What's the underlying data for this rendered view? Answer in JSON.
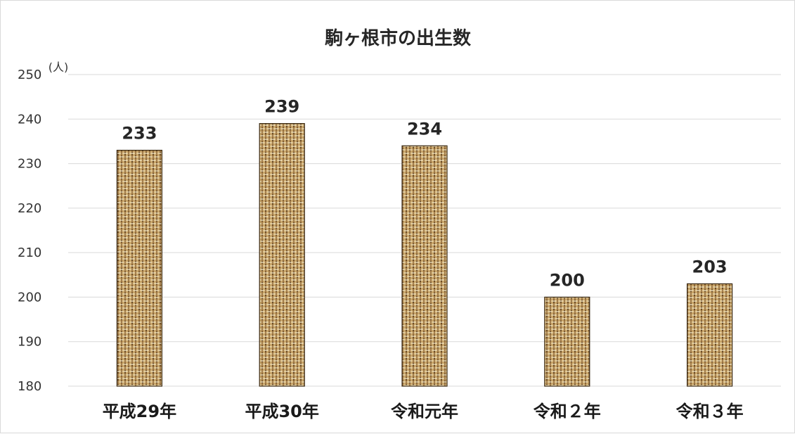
{
  "chart_data": {
    "type": "bar",
    "title": "駒ヶ根市の出生数",
    "ylabel": "(人)",
    "xlabel": "",
    "categories": [
      "平成29年",
      "平成30年",
      "令和元年",
      "令和２年",
      "令和３年"
    ],
    "values": [
      233,
      239,
      234,
      200,
      203
    ],
    "ylim": [
      180,
      250
    ],
    "ytick_step": 10,
    "grid": true,
    "data_labels": true,
    "bar_fill": "woven-burlap texture",
    "colors": {
      "bar_base": "#c9a66b",
      "bar_weave_light": "#e8d3a3",
      "bar_weave_dark": "#6b4a22",
      "grid": "#d9d9d9",
      "text": "#262626"
    }
  }
}
